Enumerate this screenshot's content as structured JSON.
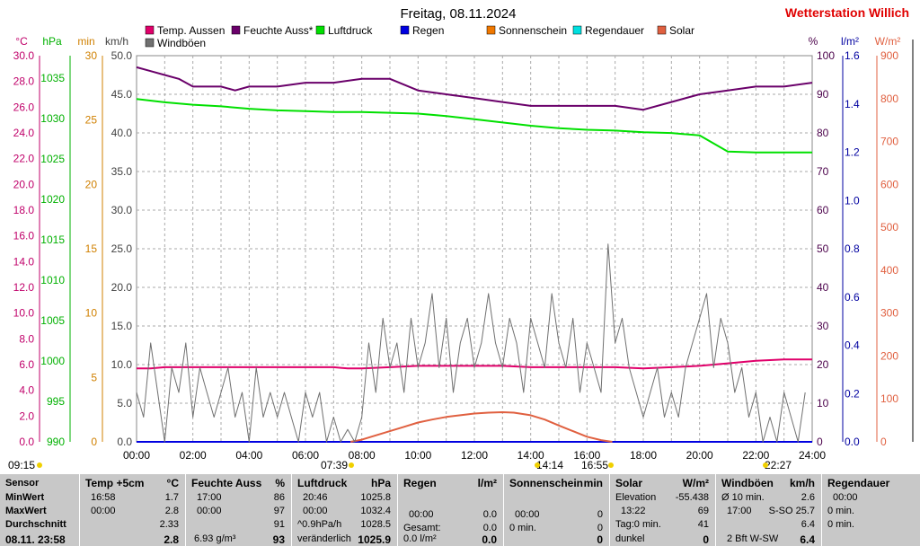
{
  "title": "Freitag, 08.11.2024",
  "station": "Wetterstation Willich",
  "legend": [
    {
      "label": "Temp. Aussen",
      "color": "#e0006a"
    },
    {
      "label": "Feuchte Auss*",
      "color": "#6a006a"
    },
    {
      "label": "Luftdruck",
      "color": "#00e000"
    },
    {
      "label": "Regen",
      "color": "#0000e0"
    },
    {
      "label": "Sonnenschein",
      "color": "#f07800"
    },
    {
      "label": "Regendauer",
      "color": "#00e0e0"
    },
    {
      "label": "Solar",
      "color": "#e06040"
    },
    {
      "label": "Windböen",
      "color": "#707070"
    }
  ],
  "axes": {
    "celsius": {
      "unit": "°C",
      "color": "#c0006a",
      "ticks": [
        "0.0",
        "2.0",
        "4.0",
        "6.0",
        "8.0",
        "10.0",
        "12.0",
        "14.0",
        "16.0",
        "18.0",
        "20.0",
        "22.0",
        "24.0",
        "26.0",
        "28.0",
        "30.0"
      ]
    },
    "hpa": {
      "unit": "hPa",
      "color": "#00b000",
      "ticks": [
        "990",
        "995",
        "1000",
        "1005",
        "1010",
        "1015",
        "1020",
        "1025",
        "1030",
        "1035"
      ]
    },
    "min": {
      "unit": "min",
      "color": "#d08000",
      "ticks": [
        "0",
        "5",
        "10",
        "15",
        "20",
        "25",
        "30"
      ]
    },
    "kmh": {
      "unit": "km/h",
      "color": "#404040",
      "ticks": [
        "0.0",
        "5.0",
        "10.0",
        "15.0",
        "20.0",
        "25.0",
        "30.0",
        "35.0",
        "40.0",
        "45.0",
        "50.0"
      ]
    },
    "percent": {
      "unit": "%",
      "color": "#4a004a",
      "ticks": [
        "0",
        "10",
        "20",
        "30",
        "40",
        "50",
        "60",
        "70",
        "80",
        "90",
        "100"
      ]
    },
    "rain": {
      "unit": "l/m²",
      "color": "#0000a0",
      "ticks": [
        "0.0",
        "0.2",
        "0.4",
        "0.6",
        "0.8",
        "1.0",
        "1.2",
        "1.4",
        "1.6"
      ]
    },
    "solar": {
      "unit": "W/m²",
      "color": "#e06040",
      "ticks": [
        "0",
        "100",
        "200",
        "300",
        "400",
        "500",
        "600",
        "700",
        "800",
        "900"
      ]
    }
  },
  "x_ticks": [
    "00:00",
    "02:00",
    "04:00",
    "06:00",
    "08:00",
    "10:00",
    "12:00",
    "14:00",
    "16:00",
    "18:00",
    "20:00",
    "22:00",
    "24:00"
  ],
  "sun_events": [
    "09:15",
    "07:39",
    "14:14",
    "16:55",
    "22:27"
  ],
  "chart_data": {
    "type": "line",
    "x_unit": "hours",
    "xlim": [
      0,
      24
    ],
    "series": [
      {
        "name": "Temp. Aussen",
        "axis": "celsius",
        "x": [
          0,
          0.5,
          1,
          2,
          3,
          4,
          5,
          6,
          7,
          7.5,
          8,
          9,
          10,
          11,
          12,
          13,
          14,
          15,
          16,
          17,
          18,
          19,
          20,
          21,
          22,
          23,
          24
        ],
        "values": [
          5.7,
          5.7,
          5.8,
          5.8,
          5.8,
          5.8,
          5.8,
          5.8,
          5.8,
          5.7,
          5.7,
          5.8,
          5.9,
          5.9,
          5.9,
          5.9,
          5.8,
          5.8,
          5.8,
          5.8,
          5.7,
          5.8,
          5.9,
          6.1,
          6.3,
          6.4,
          6.4
        ]
      },
      {
        "name": "Feuchte Auss*",
        "axis": "percent",
        "x": [
          0,
          0.5,
          1,
          1.5,
          2,
          3,
          3.5,
          4,
          5,
          6,
          7,
          8,
          9,
          10,
          11,
          12,
          13,
          14,
          15,
          16,
          17,
          18,
          19,
          20,
          21,
          22,
          23,
          24
        ],
        "values": [
          97,
          96,
          95,
          94,
          92,
          92,
          91,
          92,
          92,
          93,
          93,
          94,
          94,
          91,
          90,
          89,
          88,
          87,
          87,
          87,
          87,
          86,
          88,
          90,
          91,
          92,
          92,
          93
        ]
      },
      {
        "name": "Luftdruck",
        "axis": "hpa",
        "x": [
          0,
          1,
          2,
          3,
          4,
          5,
          6,
          7,
          8,
          9,
          10,
          11,
          12,
          13,
          14,
          15,
          16,
          17,
          18,
          19,
          20,
          21,
          22,
          23,
          24
        ],
        "values": [
          1032.4,
          1032.0,
          1031.7,
          1031.5,
          1031.2,
          1031.0,
          1030.9,
          1030.8,
          1030.8,
          1030.7,
          1030.6,
          1030.3,
          1029.9,
          1029.5,
          1029.1,
          1028.8,
          1028.6,
          1028.5,
          1028.3,
          1028.2,
          1027.9,
          1025.9,
          1025.8,
          1025.8,
          1025.8
        ]
      },
      {
        "name": "Regen",
        "axis": "rain",
        "x": [
          0,
          24
        ],
        "values": [
          0,
          0
        ]
      },
      {
        "name": "Solar",
        "axis": "solar",
        "x": [
          7.6,
          8,
          8.5,
          9,
          9.5,
          10,
          10.5,
          11,
          11.5,
          12,
          12.5,
          13,
          13.4,
          14,
          14.5,
          15,
          15.5,
          16,
          16.5,
          16.9
        ],
        "values": [
          0,
          5,
          15,
          25,
          35,
          45,
          52,
          58,
          62,
          66,
          68,
          69,
          68,
          62,
          52,
          38,
          25,
          12,
          4,
          0
        ]
      },
      {
        "name": "Windböen",
        "axis": "kmh",
        "x": [
          0,
          0.25,
          0.5,
          0.75,
          1,
          1.25,
          1.5,
          1.75,
          2,
          2.25,
          2.5,
          2.75,
          3,
          3.25,
          3.5,
          3.75,
          4,
          4.25,
          4.5,
          4.75,
          5,
          5.25,
          5.5,
          5.75,
          6,
          6.25,
          6.5,
          6.75,
          7,
          7.25,
          7.5,
          7.75,
          8,
          8.25,
          8.5,
          8.75,
          9,
          9.25,
          9.5,
          9.75,
          10,
          10.25,
          10.5,
          10.75,
          11,
          11.25,
          11.5,
          11.75,
          12,
          12.25,
          12.5,
          12.75,
          13,
          13.25,
          13.5,
          13.75,
          14,
          14.25,
          14.5,
          14.75,
          15,
          15.25,
          15.5,
          15.75,
          16,
          16.25,
          16.5,
          16.75,
          17,
          17.25,
          17.5,
          17.75,
          18,
          18.25,
          18.5,
          18.75,
          19,
          19.25,
          19.5,
          19.75,
          20,
          20.25,
          20.5,
          20.75,
          21,
          21.25,
          21.5,
          21.75,
          22,
          22.25,
          22.5,
          22.75,
          23,
          23.25,
          23.5,
          23.75
        ],
        "values": [
          6.4,
          3.2,
          12.8,
          6.4,
          0,
          9.6,
          6.4,
          12.8,
          3.2,
          9.6,
          6.4,
          3.2,
          6.4,
          9.6,
          3.2,
          6.4,
          0,
          9.6,
          3.2,
          6.4,
          3.2,
          6.4,
          3.2,
          0,
          6.4,
          3.2,
          6.4,
          0,
          3.2,
          0,
          1.6,
          0,
          3.2,
          12.8,
          6.4,
          16.0,
          9.6,
          12.8,
          6.4,
          16.0,
          9.6,
          12.8,
          19.2,
          9.6,
          16.0,
          6.4,
          12.8,
          16.0,
          9.6,
          12.8,
          19.2,
          12.8,
          9.6,
          16.0,
          12.8,
          6.4,
          16.0,
          12.8,
          9.6,
          19.2,
          12.8,
          9.6,
          16.0,
          6.4,
          12.8,
          9.6,
          6.4,
          25.6,
          12.8,
          16.0,
          9.6,
          6.4,
          3.2,
          6.4,
          9.6,
          3.2,
          6.4,
          3.2,
          9.6,
          12.8,
          16.0,
          19.2,
          9.6,
          16.0,
          12.8,
          6.4,
          9.6,
          3.2,
          6.4,
          0,
          3.2,
          0,
          6.4,
          3.2,
          0,
          6.4
        ]
      }
    ]
  },
  "stats": {
    "row_labels": [
      "Sensor",
      "MinWert",
      "MaxWert",
      "Durchschnitt",
      "08.11. 23:58"
    ],
    "temp": {
      "head": "Temp +5cm",
      "unit": "°C",
      "min_t": "16:58",
      "min_v": "1.7",
      "max_t": "00:00",
      "max_v": "2.8",
      "avg": "2.33",
      "cur": "2.8"
    },
    "hum": {
      "head": "Feuchte Auss",
      "unit": "%",
      "min_t": "17:00",
      "min_v": "86",
      "max_t": "00:00",
      "max_v": "97",
      "avg": "91",
      "cur_extra": "6.93 g/m³",
      "cur": "93"
    },
    "press": {
      "head": "Luftdruck",
      "unit": "hPa",
      "min_t": "20:46",
      "min_v": "1025.8",
      "max_t": "00:00",
      "max_v": "1032.4",
      "avg_l": "^0.9hPa/h",
      "avg": "1028.5",
      "cur_l": "veränderlich",
      "cur": "1025.9"
    },
    "rain": {
      "head": "Regen",
      "unit": "l/m²",
      "max_t": "00:00",
      "max_v": "0.0",
      "avg_l": "Gesamt:",
      "avg": "0.0",
      "cur_l": "0.0 l/m²",
      "cur": "0.0"
    },
    "sun": {
      "head": "Sonnenschein",
      "unit": "min",
      "max_t": "00:00",
      "max_v": "0",
      "avg_l": "0 min.",
      "avg": "0",
      "cur": "0"
    },
    "solar": {
      "head": "Solar",
      "unit": "W/m²",
      "min_l": "Elevation",
      "min_v": "-55.438",
      "max_t": "13:22",
      "max_v": "69",
      "avg_l": "Tag:0 min.",
      "avg": "41",
      "cur_l": "dunkel",
      "cur": "0"
    },
    "wind": {
      "head": "Windböen",
      "unit": "km/h",
      "min_l": "Ø 10 min.",
      "min_v": "2.6",
      "max_t": "17:00",
      "max_v": "S-SO 25.7",
      "avg": "6.4",
      "cur_l": "2 Bft W-SW",
      "cur": "6.4"
    },
    "raindur": {
      "head": "Regendauer",
      "min_t": "00:00",
      "max_l": "0 min.",
      "avg_l": "0 min."
    }
  }
}
